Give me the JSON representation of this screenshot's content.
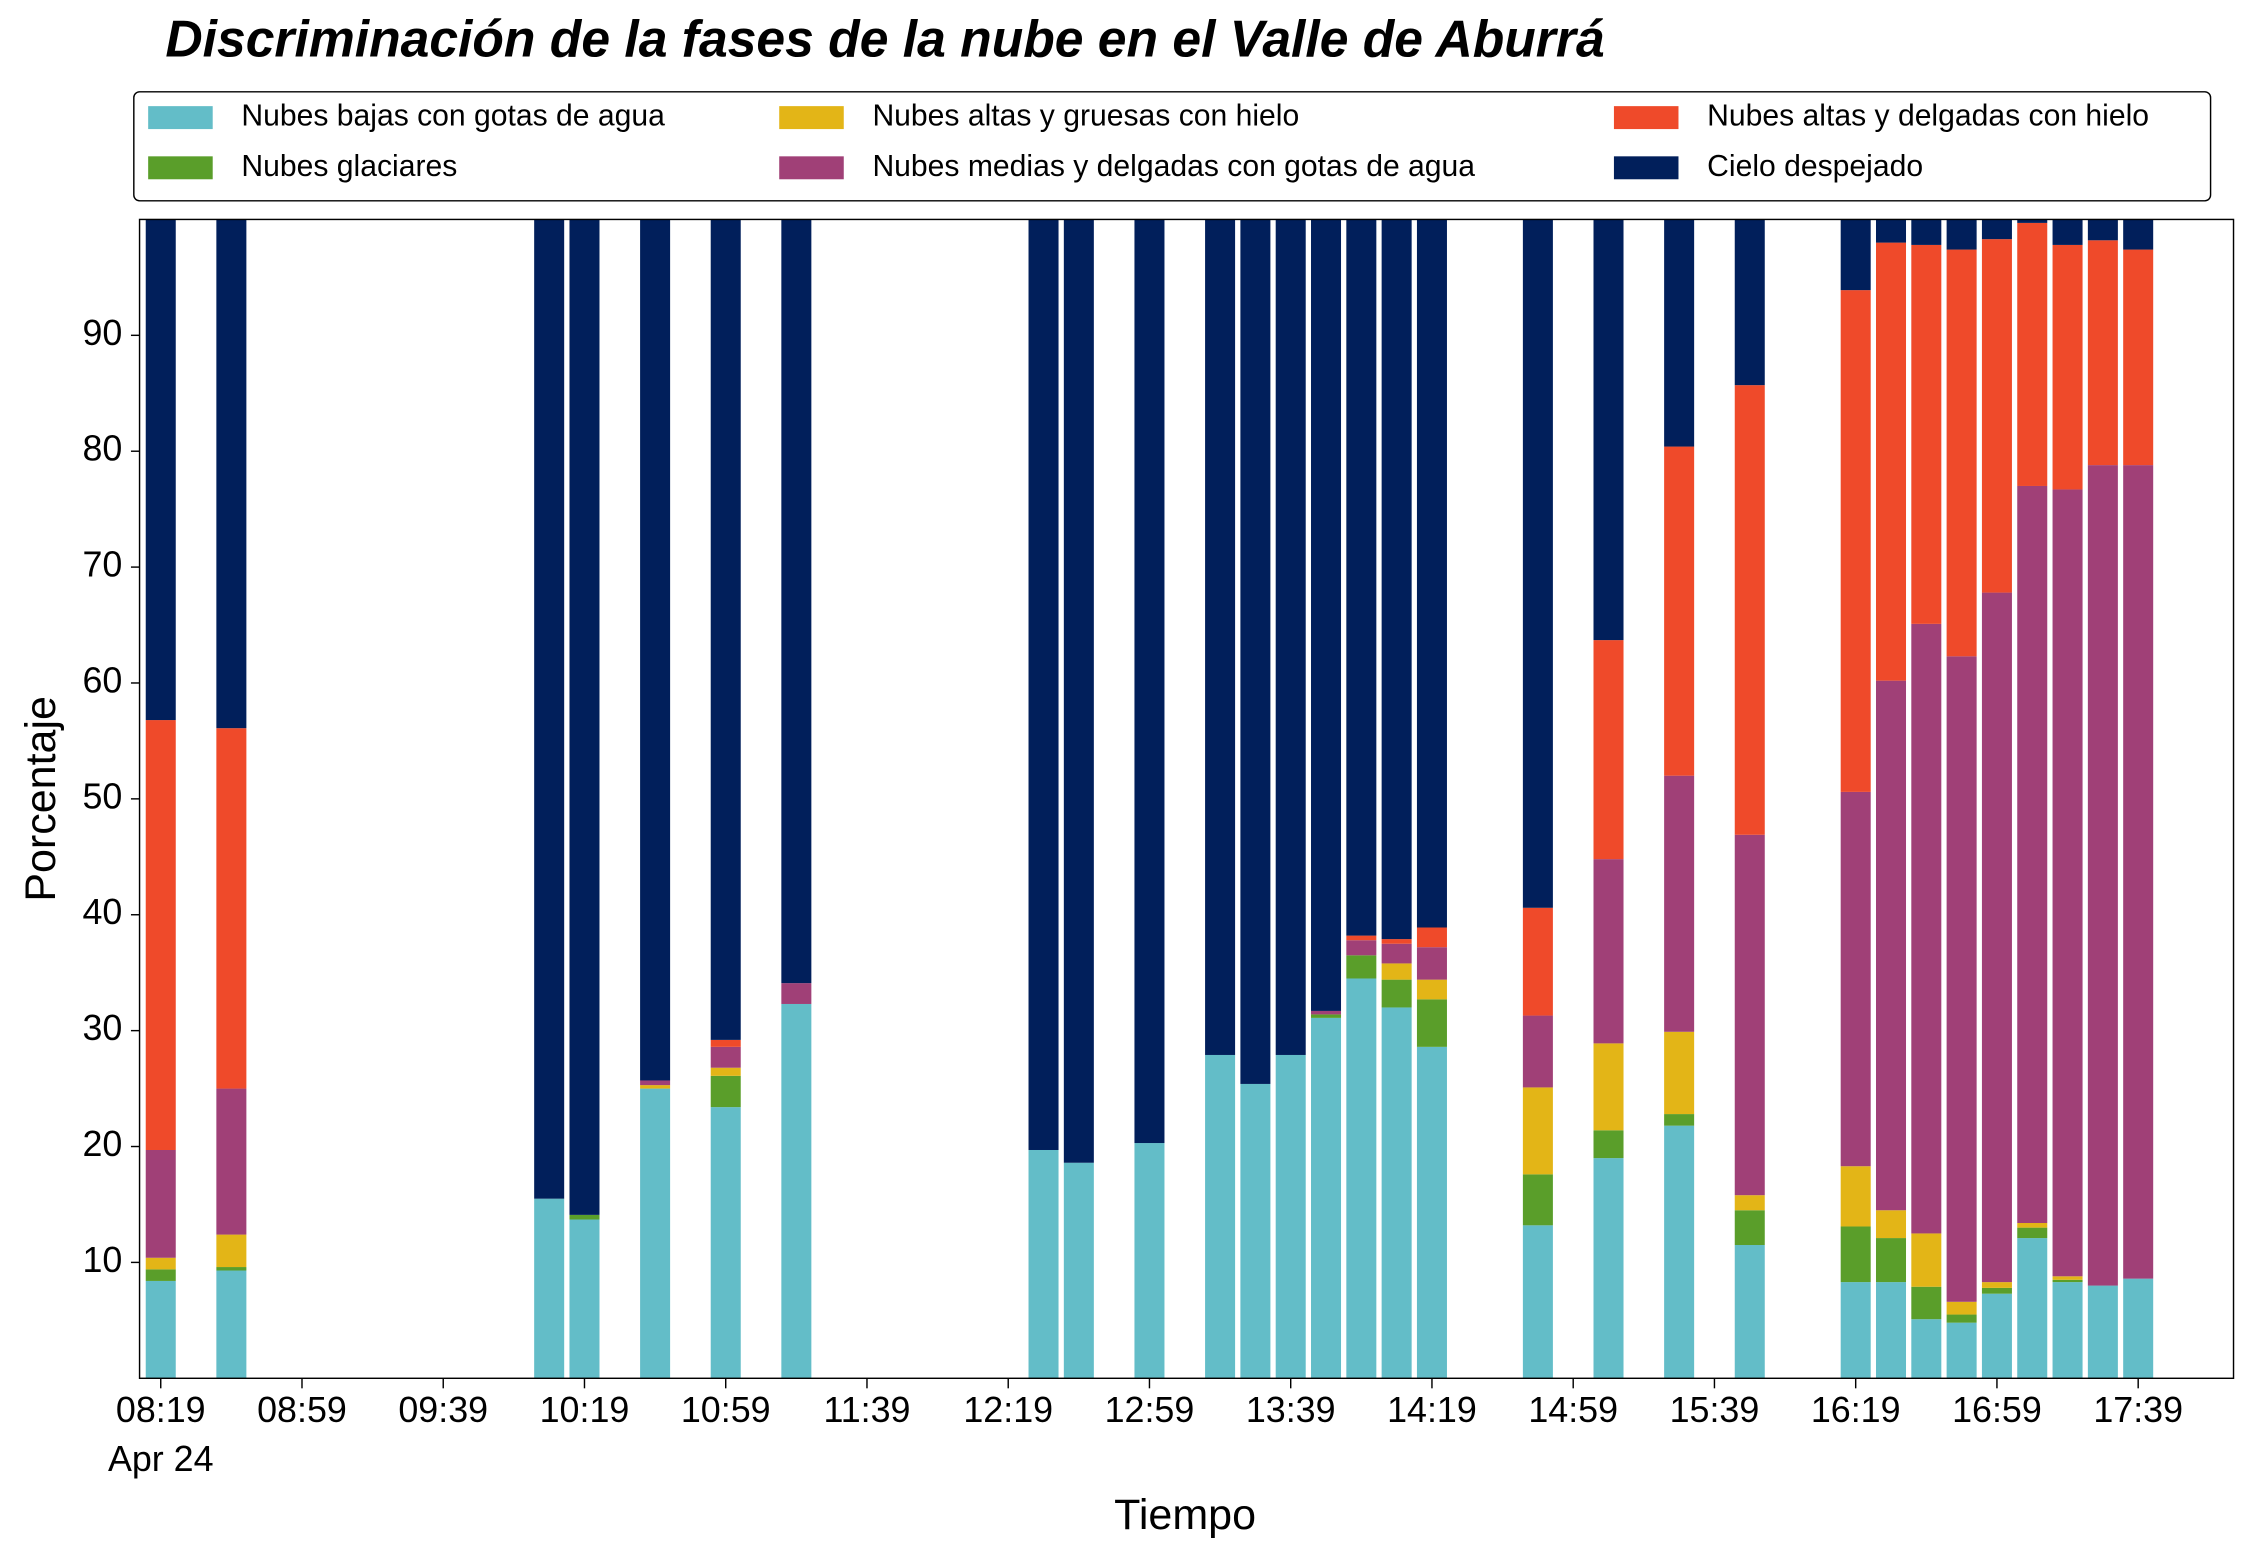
{
  "chart_data": {
    "type": "stacked_bar",
    "title": "Discriminación de la fases de la nube en el Valle de Aburrá",
    "x_label": "Tiempo",
    "y_label": "Porcentaje",
    "date": "Apr 24",
    "x": [
      "08:19",
      "08:39",
      "10:09",
      "10:19",
      "10:39",
      "10:59",
      "11:19",
      "12:29",
      "12:39",
      "12:59",
      "13:19",
      "13:29",
      "13:39",
      "13:49",
      "13:59",
      "14:09",
      "14:19",
      "14:49",
      "15:09",
      "15:29",
      "15:49",
      "16:19",
      "16:29",
      "16:39",
      "16:49",
      "16:59",
      "17:09",
      "17:19",
      "17:29",
      "17:39"
    ],
    "xlim": [
      "08:13",
      "18:06"
    ],
    "xticks": [
      "08:19",
      "08:59",
      "09:39",
      "10:19",
      "10:59",
      "11:39",
      "12:19",
      "12:59",
      "13:39",
      "14:19",
      "14:59",
      "15:39",
      "16:19",
      "16:59",
      "17:39"
    ],
    "ylim": [
      0,
      100
    ],
    "yticks": [
      10,
      20,
      30,
      40,
      50,
      60,
      70,
      80,
      90
    ],
    "legend": "top",
    "series": [
      {
        "name": "Nubes bajas con gotas de agua",
        "color": "#63bdc8",
        "values": [
          8.4,
          9.3,
          15.5,
          13.7,
          25.0,
          23.4,
          32.3,
          19.7,
          18.6,
          20.3,
          27.9,
          25.4,
          27.9,
          31.1,
          34.5,
          32.0,
          28.6,
          13.2,
          19.0,
          21.8,
          11.5,
          8.3,
          8.3,
          5.1,
          4.8,
          7.3,
          12.1,
          8.3,
          8.0,
          8.6
        ]
      },
      {
        "name": "Nubes glaciares",
        "color": "#5a9e2a",
        "values": [
          1.0,
          0.3,
          0,
          0.4,
          0,
          2.7,
          0,
          0,
          0,
          0,
          0,
          0,
          0,
          0.3,
          2.0,
          2.4,
          4.1,
          4.4,
          2.4,
          1.0,
          3.0,
          4.8,
          3.8,
          2.8,
          0.7,
          0.5,
          0.9,
          0.2,
          0,
          0
        ]
      },
      {
        "name": "Nubes altas y gruesas con hielo",
        "color": "#e3b517",
        "values": [
          1.0,
          2.8,
          0,
          0,
          0.3,
          0.7,
          0,
          0,
          0,
          0,
          0,
          0,
          0,
          0,
          0,
          1.4,
          1.7,
          7.5,
          7.5,
          7.1,
          1.3,
          5.2,
          2.4,
          4.6,
          1.1,
          0.5,
          0.4,
          0.3,
          0,
          0
        ]
      },
      {
        "name": "Nubes medias y delgadas con gotas de agua",
        "color": "#a04077",
        "values": [
          9.3,
          12.6,
          0,
          0,
          0.4,
          1.8,
          1.8,
          0,
          0,
          0,
          0,
          0,
          0,
          0.3,
          1.3,
          1.7,
          2.8,
          6.2,
          15.9,
          22.1,
          31.1,
          32.3,
          45.7,
          52.6,
          55.7,
          59.5,
          63.6,
          67.9,
          70.8,
          70.2
        ]
      },
      {
        "name": "Nubes altas y delgadas con hielo",
        "color": "#ef4a2a",
        "values": [
          37.1,
          31.1,
          0,
          0,
          0,
          0.6,
          0,
          0,
          0,
          0,
          0,
          0,
          0,
          0,
          0.4,
          0.4,
          1.7,
          9.3,
          18.9,
          28.4,
          38.8,
          43.3,
          37.8,
          32.7,
          35.1,
          30.5,
          22.7,
          21.1,
          19.4,
          18.6
        ]
      },
      {
        "name": "Cielo despejado",
        "color": "#011f5b",
        "values": [
          43.2,
          43.9,
          84.5,
          85.9,
          74.3,
          70.8,
          65.9,
          80.3,
          81.4,
          79.7,
          72.1,
          74.6,
          72.1,
          68.3,
          61.8,
          62.1,
          61.1,
          59.4,
          36.3,
          19.6,
          14.3,
          6.1,
          2.0,
          2.2,
          2.6,
          1.7,
          0.3,
          2.2,
          1.8,
          2.6
        ]
      }
    ]
  }
}
